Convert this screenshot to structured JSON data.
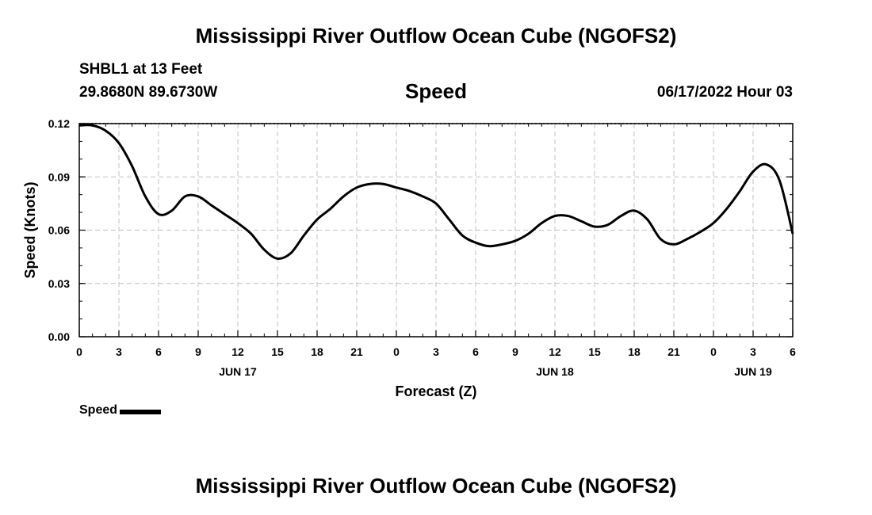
{
  "header": {
    "title": "Mississippi River Outflow Ocean Cube (NGOFS2)",
    "station": "SHBL1 at 13 Feet",
    "coords": "29.8680N  89.6730W",
    "subtitle": "Speed",
    "datetime": "06/17/2022 Hour 03"
  },
  "footer": {
    "title": "Mississippi River Outflow Ocean Cube (NGOFS2)"
  },
  "legend": {
    "label": "Speed",
    "color": "#000000"
  },
  "chart_data": {
    "type": "line",
    "title": "Speed",
    "xlabel": "Forecast (Z)",
    "ylabel": "Speed (Knots)",
    "xlim": [
      0,
      54
    ],
    "ylim": [
      0,
      0.12
    ],
    "grid": true,
    "x_ticks": [
      0,
      3,
      6,
      9,
      12,
      15,
      18,
      21,
      24,
      27,
      30,
      33,
      36,
      39,
      42,
      45,
      48,
      51,
      54
    ],
    "x_tick_labels": [
      "0",
      "3",
      "6",
      "9",
      "12",
      "15",
      "18",
      "21",
      "0",
      "3",
      "6",
      "9",
      "12",
      "15",
      "18",
      "21",
      "0",
      "3",
      "6"
    ],
    "date_labels": [
      {
        "x": 12,
        "label": "JUN 17"
      },
      {
        "x": 36,
        "label": "JUN 18"
      },
      {
        "x": 51,
        "label": "JUN 19"
      }
    ],
    "y_ticks": [
      0,
      0.03,
      0.06,
      0.09,
      0.12
    ],
    "y_tick_labels": [
      "0.00",
      "0.03",
      "0.06",
      "0.09",
      "0.12"
    ],
    "series": [
      {
        "name": "Speed",
        "color": "#000000",
        "x": [
          0,
          1,
          2,
          3,
          4,
          5,
          6,
          7,
          8,
          9,
          10,
          11,
          12,
          13,
          14,
          15,
          16,
          17,
          18,
          19,
          20,
          21,
          22,
          23,
          24,
          25,
          26,
          27,
          28,
          29,
          30,
          31,
          32,
          33,
          34,
          35,
          36,
          37,
          38,
          39,
          40,
          41,
          42,
          43,
          44,
          45,
          46,
          47,
          48,
          49,
          50,
          51,
          52,
          53,
          54
        ],
        "values": [
          0.119,
          0.119,
          0.116,
          0.109,
          0.096,
          0.079,
          0.069,
          0.071,
          0.079,
          0.079,
          0.074,
          0.069,
          0.064,
          0.058,
          0.049,
          0.044,
          0.047,
          0.057,
          0.066,
          0.072,
          0.079,
          0.084,
          0.086,
          0.086,
          0.084,
          0.082,
          0.079,
          0.075,
          0.066,
          0.057,
          0.053,
          0.051,
          0.052,
          0.054,
          0.058,
          0.064,
          0.068,
          0.068,
          0.065,
          0.062,
          0.063,
          0.068,
          0.071,
          0.066,
          0.055,
          0.052,
          0.055,
          0.059,
          0.064,
          0.072,
          0.082,
          0.093,
          0.097,
          0.088,
          0.058
        ]
      }
    ]
  }
}
